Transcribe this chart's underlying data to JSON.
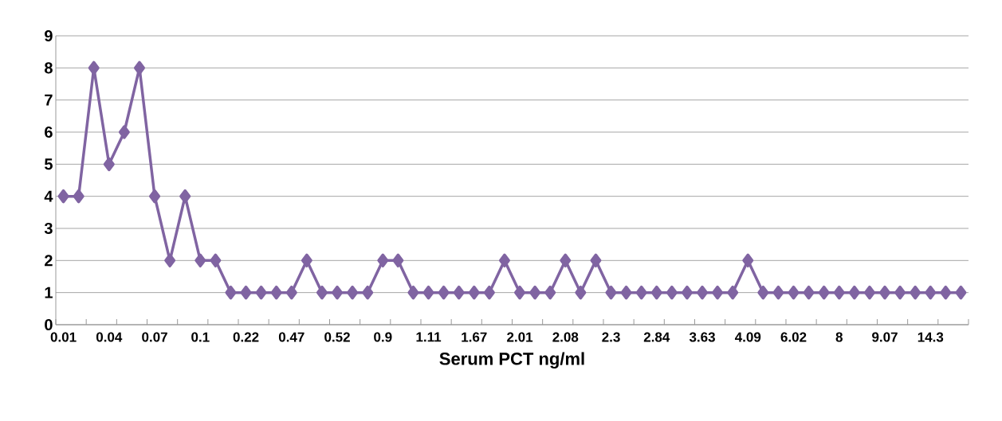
{
  "chart_data": {
    "type": "line",
    "xlabel": "Serum PCT ng/ml",
    "categories": [
      "0.01",
      null,
      null,
      "0.04",
      null,
      null,
      "0.07",
      null,
      null,
      "0.1",
      null,
      null,
      "0.22",
      null,
      null,
      "0.47",
      null,
      null,
      "0.52",
      null,
      null,
      "0.9",
      null,
      null,
      "1.11",
      null,
      null,
      "1.67",
      null,
      null,
      "2.01",
      null,
      null,
      "2.08",
      null,
      null,
      "2.3",
      null,
      null,
      "2.84",
      null,
      null,
      "3.63",
      null,
      null,
      "4.09",
      null,
      null,
      "6.02",
      null,
      null,
      "8",
      null,
      null,
      "9.07",
      null,
      null,
      "14.3",
      null,
      null
    ],
    "series": [
      {
        "color": "#8064a2",
        "values": [
          4,
          4,
          8,
          5,
          6,
          8,
          4,
          2,
          4,
          2,
          2,
          1,
          1,
          1,
          1,
          1,
          2,
          1,
          1,
          1,
          1,
          2,
          2,
          1,
          1,
          1,
          1,
          1,
          1,
          2,
          1,
          1,
          1,
          2,
          1,
          2,
          1,
          1,
          1,
          1,
          1,
          1,
          1,
          1,
          1,
          2,
          1,
          1,
          1,
          1,
          1,
          1,
          1,
          1,
          1,
          1,
          1,
          1,
          1,
          1
        ]
      }
    ],
    "ylim": [
      0,
      9
    ],
    "yticks": [
      0,
      1,
      2,
      3,
      4,
      5,
      6,
      7,
      8,
      9
    ],
    "grid": "y",
    "marker": "diamond",
    "line_style": "solid"
  }
}
